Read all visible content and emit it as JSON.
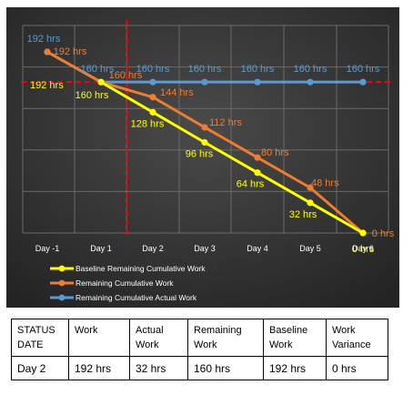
{
  "chart_data": {
    "type": "line",
    "categories": [
      "Day -1",
      "Day 1",
      "Day 2",
      "Day 3",
      "Day 4",
      "Day 5",
      "Day 6"
    ],
    "series": [
      {
        "name": "Baseline Remaining Cumulative Work",
        "color": "#ffff00",
        "values": [
          null,
          160,
          128,
          96,
          64,
          32,
          0
        ],
        "labels": [
          "",
          "160 hrs",
          "128 hrs",
          "96 hrs",
          "64 hrs",
          "32 hrs",
          "0 hrs"
        ]
      },
      {
        "name": "Remaining Cumulative Work",
        "color": "#ed7d31",
        "values": [
          192,
          160,
          144,
          112,
          80,
          48,
          0
        ],
        "labels": [
          "192 hrs",
          "160 hrs",
          "144 hrs",
          "112 hrs",
          "80 hrs",
          "48 hrs",
          "0 hrs"
        ]
      },
      {
        "name": "Remaining Cumulative Actual Work",
        "color": "#5b9bd5",
        "values": [
          192,
          160,
          160,
          160,
          160,
          160,
          160
        ],
        "labels": [
          "192 hrs",
          "160 hrs",
          "160 hrs",
          "160 hrs",
          "160 hrs",
          "160 hrs",
          "160 hrs"
        ]
      }
    ],
    "extra_labels": [
      {
        "text": "192 hrs",
        "color": "#ffff00"
      }
    ],
    "reference_lines": [
      {
        "orientation": "horizontal",
        "value": 160,
        "color": "#ff0000",
        "style": "dashed"
      },
      {
        "orientation": "vertical",
        "category": "Day 2",
        "color": "#ff0000",
        "style": "dashed"
      }
    ],
    "ylim": [
      0,
      220
    ],
    "grid": true,
    "legend_position": "bottom-left",
    "background": "#3a3a3a",
    "xlabel": "",
    "ylabel": "",
    "title": ""
  },
  "table": {
    "headers": [
      [
        "STATUS",
        "DATE"
      ],
      [
        "Work"
      ],
      [
        "Actual",
        "Work"
      ],
      [
        "Remaining",
        "Work"
      ],
      [
        "Baseline",
        "Work"
      ],
      [
        "Work",
        "Variance"
      ]
    ],
    "values": [
      "Day 2",
      "192 hrs",
      "32 hrs",
      "160 hrs",
      "192 hrs",
      "0 hrs"
    ]
  }
}
